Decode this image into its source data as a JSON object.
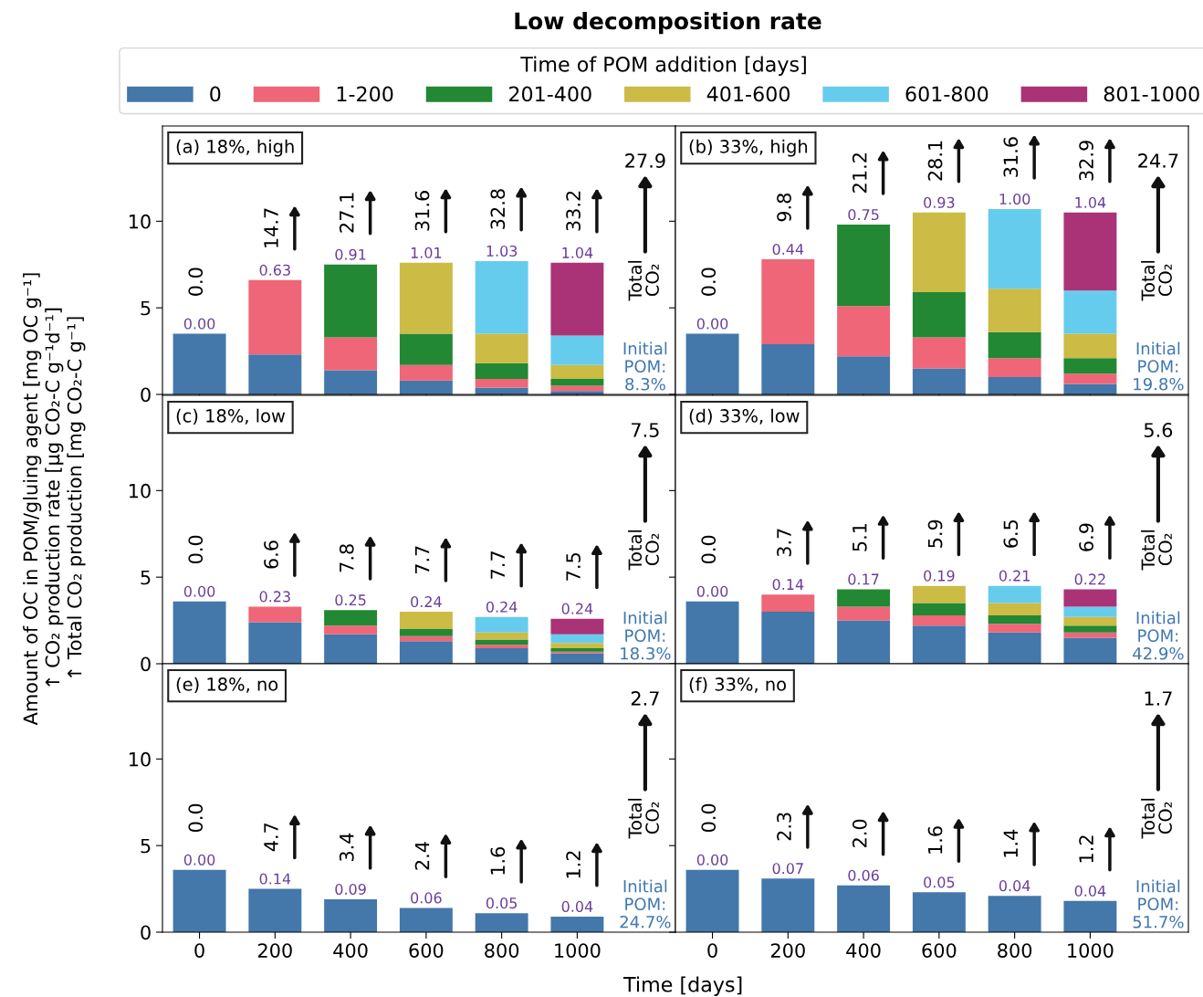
{
  "chart_data": [
    {
      "type": "bar",
      "title": "(a) 18%, high",
      "stacked": true,
      "legend": "top",
      "legend_title": "Time of POM addition [days]",
      "categories": [
        "0",
        "200",
        "400",
        "600",
        "800",
        "1000"
      ],
      "ylim": [
        0,
        15.5
      ],
      "yticks": [
        0,
        5,
        10
      ],
      "tick_labels": "y",
      "series": [
        {
          "name": "0",
          "color": "#4477aa",
          "values": [
            3.5,
            2.3,
            1.4,
            0.8,
            0.4,
            0.2
          ]
        },
        {
          "name": "1-200",
          "color": "#ee6677",
          "values": [
            null,
            4.3,
            1.9,
            0.9,
            0.5,
            0.3
          ]
        },
        {
          "name": "201-400",
          "color": "#228833",
          "values": [
            null,
            null,
            4.2,
            1.8,
            0.9,
            0.4
          ]
        },
        {
          "name": "401-600",
          "color": "#ccbb44",
          "values": [
            null,
            null,
            null,
            4.1,
            1.7,
            0.8
          ]
        },
        {
          "name": "601-800",
          "color": "#66ccee",
          "values": [
            null,
            null,
            null,
            null,
            4.2,
            1.7
          ]
        },
        {
          "name": "801-1000",
          "color": "#aa3377",
          "values": [
            null,
            null,
            null,
            null,
            null,
            4.2
          ]
        }
      ],
      "annotations": [
        {
          "text": "0.00",
          "x": "0",
          "y": 3.5
        },
        {
          "text": "0.63",
          "x": "200",
          "y": 6.6
        },
        {
          "text": "0.91",
          "x": "400",
          "y": 7.5
        },
        {
          "text": "1.01",
          "x": "600",
          "y": 7.6
        },
        {
          "text": "1.03",
          "x": "800",
          "y": 7.7
        },
        {
          "text": "1.04",
          "x": "1000",
          "y": 7.6
        },
        "0.0",
        "14.7",
        "27.1",
        "31.6",
        "32.8",
        "33.2",
        "Total\nCO₂",
        "27.9",
        "Initial\nPOM:\n8.3%",
        "Low decomposition rate"
      ]
    },
    {
      "type": "bar",
      "title": "(b) 33%, high",
      "stacked": true,
      "categories": [
        "0",
        "200",
        "400",
        "600",
        "800",
        "1000"
      ],
      "ylim": [
        0,
        15.5
      ],
      "yticks": [
        0,
        5,
        10
      ],
      "tick_labels": false,
      "series": [
        {
          "color": "#4477aa",
          "values": [
            3.5,
            2.9,
            2.2,
            1.5,
            1.0,
            0.6
          ]
        },
        {
          "color": "#ee6677",
          "values": [
            null,
            4.9,
            2.9,
            1.8,
            1.1,
            0.6
          ]
        },
        {
          "color": "#228833",
          "values": [
            null,
            null,
            4.7,
            2.6,
            1.5,
            0.9
          ]
        },
        {
          "color": "#ccbb44",
          "values": [
            null,
            null,
            null,
            4.6,
            2.5,
            1.4
          ]
        },
        {
          "color": "#66ccee",
          "values": [
            null,
            null,
            null,
            null,
            4.6,
            2.5
          ]
        },
        {
          "color": "#aa3377",
          "values": [
            null,
            null,
            null,
            null,
            null,
            4.5
          ]
        }
      ],
      "annotations": [
        {
          "text": "0.00",
          "x": "0",
          "y": 3.5
        },
        {
          "text": "0.44",
          "x": "200",
          "y": 7.8
        },
        {
          "text": "0.75",
          "x": "400",
          "y": 9.8
        },
        {
          "text": "0.93",
          "x": "600",
          "y": 10.5
        },
        {
          "text": "1.00",
          "x": "800",
          "y": 10.7
        },
        {
          "text": "1.04",
          "x": "1000",
          "y": 10.5
        },
        "0.0",
        "9.8",
        "21.2",
        "28.1",
        "31.6",
        "32.9",
        "Total\nCO₂",
        "24.7",
        "Initial\nPOM:\n19.8%"
      ]
    },
    {
      "type": "bar",
      "title": "(c) 18%, low",
      "stacked": true,
      "categories": [
        "0",
        "200",
        "400",
        "600",
        "800",
        "1000"
      ],
      "ylim": [
        0,
        15.5
      ],
      "yticks": [
        0,
        5,
        10
      ],
      "tick_labels": "y",
      "ylabel": "Amount of OC in POM/gluing agent [mg OC g⁻¹]\n↑ CO₂ production rate [µg CO₂-C g⁻¹d⁻¹]\n↑ Total CO₂ production [mg CO₂-C g⁻¹]",
      "series": [
        {
          "color": "#4477aa",
          "values": [
            3.6,
            2.4,
            1.7,
            1.3,
            0.9,
            0.6
          ]
        },
        {
          "color": "#ee6677",
          "values": [
            null,
            0.9,
            0.5,
            0.3,
            0.2,
            0.1
          ]
        },
        {
          "color": "#228833",
          "values": [
            null,
            null,
            0.9,
            0.4,
            0.3,
            0.2
          ]
        },
        {
          "color": "#ccbb44",
          "values": [
            null,
            null,
            null,
            1.0,
            0.4,
            0.3
          ]
        },
        {
          "color": "#66ccee",
          "values": [
            null,
            null,
            null,
            null,
            0.9,
            0.5
          ]
        },
        {
          "color": "#aa3377",
          "values": [
            null,
            null,
            null,
            null,
            null,
            0.9
          ]
        }
      ],
      "annotations": [
        {
          "text": "0.00",
          "x": "0",
          "y": 3.6
        },
        {
          "text": "0.23",
          "x": "200",
          "y": 3.3
        },
        {
          "text": "0.25",
          "x": "400",
          "y": 3.1
        },
        {
          "text": "0.24",
          "x": "600",
          "y": 3.0
        },
        {
          "text": "0.24",
          "x": "800",
          "y": 2.7
        },
        {
          "text": "0.24",
          "x": "1000",
          "y": 2.6
        },
        "0.0",
        "6.6",
        "7.8",
        "7.7",
        "7.7",
        "7.5",
        "Total\nCO₂",
        "7.5",
        "Initial\nPOM:\n18.3%"
      ]
    },
    {
      "type": "bar",
      "title": "(d) 33%, low",
      "stacked": true,
      "categories": [
        "0",
        "200",
        "400",
        "600",
        "800",
        "1000"
      ],
      "ylim": [
        0,
        15.5
      ],
      "yticks": [
        0,
        5,
        10
      ],
      "tick_labels": false,
      "series": [
        {
          "color": "#4477aa",
          "values": [
            3.6,
            3.0,
            2.5,
            2.2,
            1.8,
            1.5
          ]
        },
        {
          "color": "#ee6677",
          "values": [
            null,
            1.0,
            0.8,
            0.6,
            0.5,
            0.3
          ]
        },
        {
          "color": "#228833",
          "values": [
            null,
            null,
            1.0,
            0.7,
            0.5,
            0.4
          ]
        },
        {
          "color": "#ccbb44",
          "values": [
            null,
            null,
            null,
            1.0,
            0.7,
            0.5
          ]
        },
        {
          "color": "#66ccee",
          "values": [
            null,
            null,
            null,
            null,
            1.0,
            0.6
          ]
        },
        {
          "color": "#aa3377",
          "values": [
            null,
            null,
            null,
            null,
            null,
            1.0
          ]
        }
      ],
      "annotations": [
        {
          "text": "0.00",
          "x": "0",
          "y": 3.6
        },
        {
          "text": "0.14",
          "x": "200",
          "y": 4.0
        },
        {
          "text": "0.17",
          "x": "400",
          "y": 4.3
        },
        {
          "text": "0.19",
          "x": "600",
          "y": 4.5
        },
        {
          "text": "0.21",
          "x": "800",
          "y": 4.5
        },
        {
          "text": "0.22",
          "x": "1000",
          "y": 4.3
        },
        "0.0",
        "3.7",
        "5.1",
        "5.9",
        "6.5",
        "6.9",
        "Total\nCO₂",
        "5.6",
        "Initial\nPOM:\n42.9%"
      ]
    },
    {
      "type": "bar",
      "title": "(e) 18%, no",
      "stacked": true,
      "categories": [
        "0",
        "200",
        "400",
        "600",
        "800",
        "1000"
      ],
      "ylim": [
        0,
        15.5
      ],
      "yticks": [
        0,
        5,
        10
      ],
      "xlabel": "Time [days]",
      "series": [
        {
          "color": "#4477aa",
          "values": [
            3.6,
            2.5,
            1.9,
            1.4,
            1.1,
            0.9
          ]
        }
      ],
      "annotations": [
        {
          "text": "0.00",
          "x": "0",
          "y": 3.6
        },
        {
          "text": "0.14",
          "x": "200",
          "y": 2.5
        },
        {
          "text": "0.09",
          "x": "400",
          "y": 1.9
        },
        {
          "text": "0.06",
          "x": "600",
          "y": 1.4
        },
        {
          "text": "0.05",
          "x": "800",
          "y": 1.1
        },
        {
          "text": "0.04",
          "x": "1000",
          "y": 0.9
        },
        "0.0",
        "4.7",
        "3.4",
        "2.4",
        "1.6",
        "1.2",
        "Total\nCO₂",
        "2.7",
        "Initial\nPOM:\n24.7%"
      ]
    },
    {
      "type": "bar",
      "title": "(f) 33%, no",
      "stacked": true,
      "categories": [
        "0",
        "200",
        "400",
        "600",
        "800",
        "1000"
      ],
      "ylim": [
        0,
        15.5
      ],
      "yticks": [
        0,
        5,
        10
      ],
      "tick_labels": "x",
      "series": [
        {
          "color": "#4477aa",
          "values": [
            3.6,
            3.1,
            2.7,
            2.3,
            2.1,
            1.8
          ]
        }
      ],
      "annotations": [
        {
          "text": "0.00",
          "x": "0",
          "y": 3.6
        },
        {
          "text": "0.07",
          "x": "200",
          "y": 3.1
        },
        {
          "text": "0.06",
          "x": "400",
          "y": 2.7
        },
        {
          "text": "0.05",
          "x": "600",
          "y": 2.3
        },
        {
          "text": "0.04",
          "x": "800",
          "y": 2.1
        },
        {
          "text": "0.04",
          "x": "1000",
          "y": 1.8
        },
        "0.0",
        "2.3",
        "2.0",
        "1.6",
        "1.4",
        "1.2",
        "Total\nCO₂",
        "1.7",
        "Initial\nPOM:\n51.7%"
      ]
    }
  ]
}
